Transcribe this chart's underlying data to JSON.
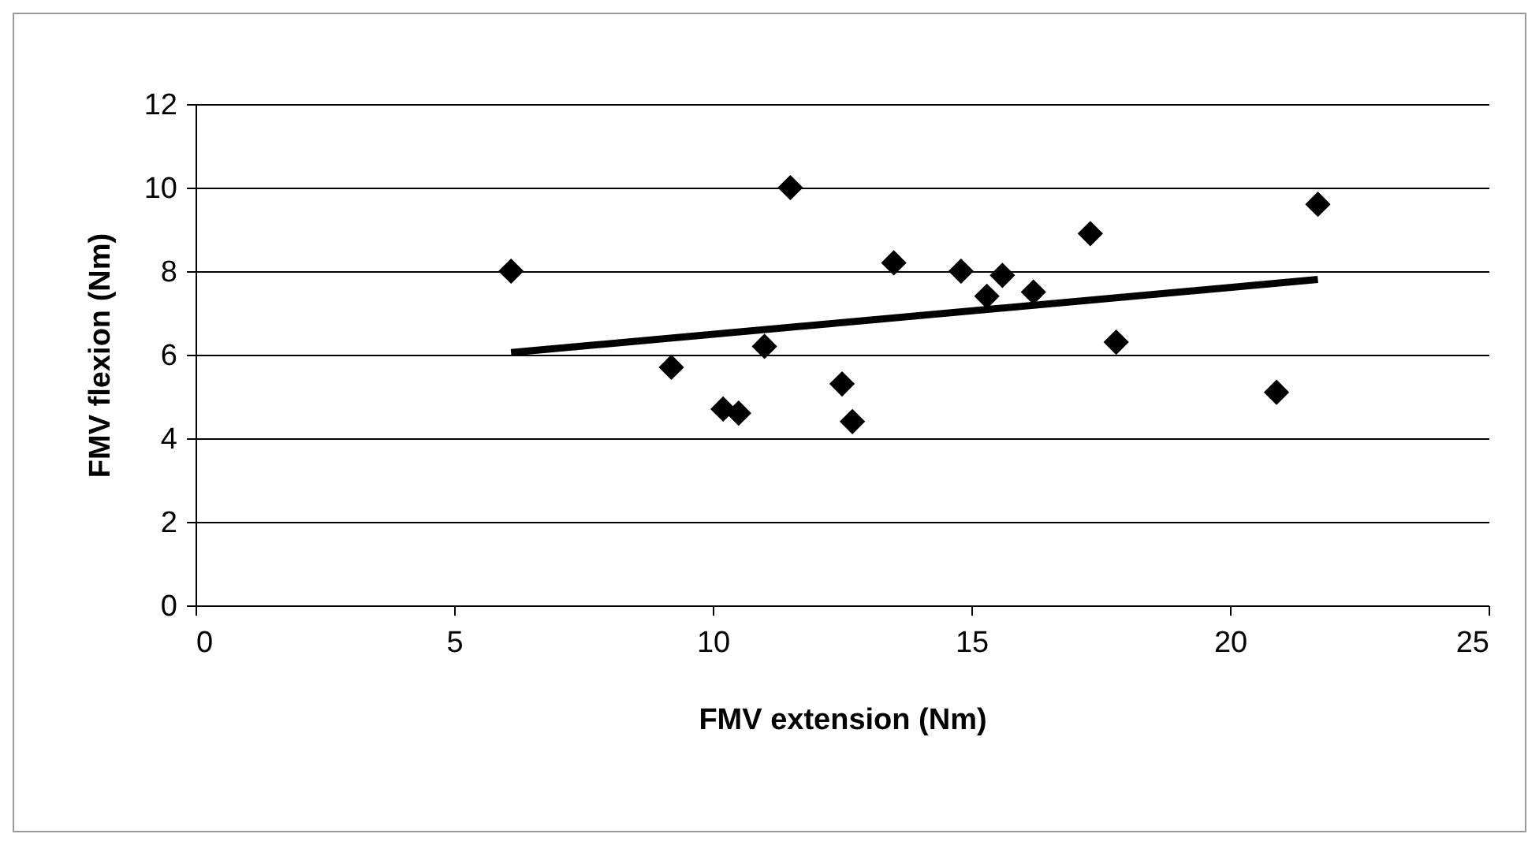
{
  "chart_data": {
    "type": "scatter",
    "xlabel": "FMV extension (Nm)",
    "ylabel": "FMV flexion (Nm)",
    "xlim": [
      0,
      25
    ],
    "ylim": [
      0,
      12
    ],
    "xticks": [
      0,
      5,
      10,
      15,
      20,
      25
    ],
    "yticks": [
      0,
      2,
      4,
      6,
      8,
      10,
      12
    ],
    "grid": "y",
    "series": [
      {
        "marker": "diamond",
        "color": "#000000",
        "x": [
          6.1,
          9.2,
          10.2,
          10.5,
          11.0,
          11.5,
          12.5,
          12.7,
          13.5,
          14.8,
          15.3,
          15.6,
          16.2,
          17.3,
          17.8,
          20.9,
          21.7
        ],
        "values": [
          8.0,
          5.7,
          4.7,
          4.6,
          6.2,
          10.0,
          5.3,
          4.4,
          8.2,
          8.0,
          7.4,
          7.9,
          7.5,
          8.9,
          6.3,
          5.1,
          9.6
        ]
      },
      {
        "type": "line",
        "color": "#000000",
        "x": [
          6.1,
          21.7
        ],
        "values": [
          6.05,
          7.8
        ]
      }
    ]
  }
}
